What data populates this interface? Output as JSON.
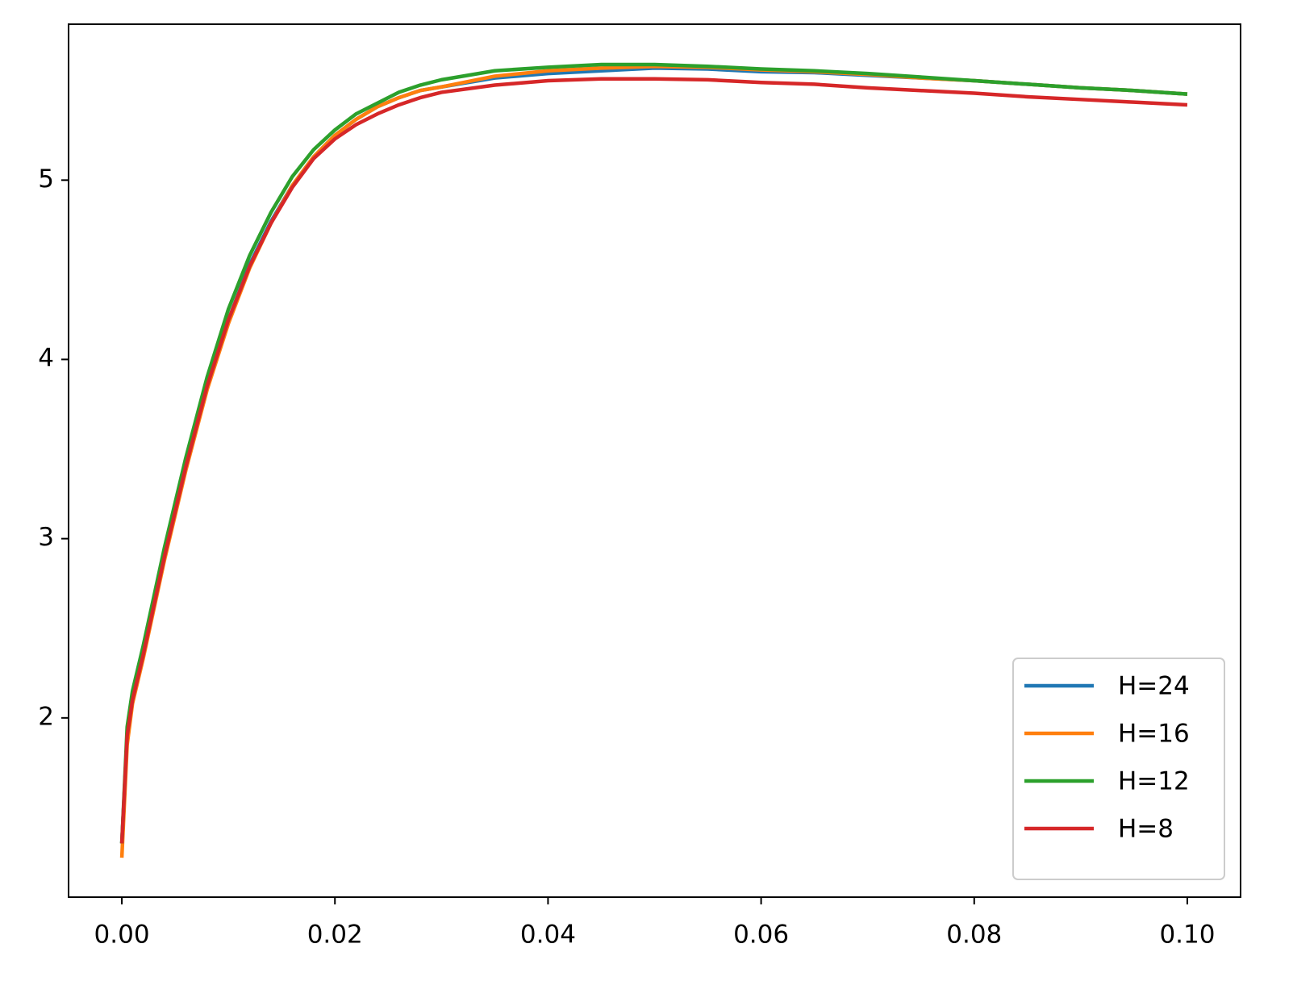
{
  "chart_data": {
    "type": "line",
    "x": [
      0,
      0.0005,
      0.001,
      0.002,
      0.004,
      0.006,
      0.008,
      0.01,
      0.012,
      0.014,
      0.016,
      0.018,
      0.02,
      0.022,
      0.024,
      0.026,
      0.028,
      0.03,
      0.035,
      0.04,
      0.045,
      0.05,
      0.055,
      0.06,
      0.065,
      0.07,
      0.075,
      0.08,
      0.085,
      0.09,
      0.095,
      0.1
    ],
    "series": [
      {
        "name": "H=24",
        "color": "#1f77b4",
        "values": [
          1.3,
          1.9,
          2.1,
          2.35,
          2.9,
          3.4,
          3.85,
          4.22,
          4.53,
          4.77,
          4.97,
          5.13,
          5.25,
          5.34,
          5.41,
          5.46,
          5.5,
          5.52,
          5.57,
          5.595,
          5.61,
          5.625,
          5.62,
          5.605,
          5.6,
          5.585,
          5.57,
          5.555,
          5.535,
          5.515,
          5.5,
          5.48
        ]
      },
      {
        "name": "H=16",
        "color": "#ff7f0e",
        "values": [
          1.22,
          1.85,
          2.08,
          2.33,
          2.88,
          3.38,
          3.83,
          4.2,
          4.51,
          4.76,
          4.97,
          5.13,
          5.25,
          5.34,
          5.41,
          5.46,
          5.5,
          5.52,
          5.58,
          5.61,
          5.625,
          5.635,
          5.63,
          5.615,
          5.605,
          5.59,
          5.57,
          5.555,
          5.535,
          5.515,
          5.5,
          5.48
        ]
      },
      {
        "name": "H=12",
        "color": "#2ca02c",
        "values": [
          1.3,
          1.95,
          2.15,
          2.4,
          2.95,
          3.45,
          3.9,
          4.28,
          4.58,
          4.82,
          5.02,
          5.17,
          5.28,
          5.37,
          5.43,
          5.49,
          5.53,
          5.56,
          5.61,
          5.63,
          5.645,
          5.645,
          5.635,
          5.62,
          5.61,
          5.595,
          5.575,
          5.555,
          5.535,
          5.515,
          5.5,
          5.48
        ]
      },
      {
        "name": "H=8",
        "color": "#d62728",
        "values": [
          1.3,
          1.9,
          2.1,
          2.35,
          2.9,
          3.4,
          3.85,
          4.22,
          4.52,
          4.76,
          4.96,
          5.12,
          5.23,
          5.31,
          5.37,
          5.42,
          5.46,
          5.49,
          5.53,
          5.555,
          5.565,
          5.565,
          5.56,
          5.545,
          5.535,
          5.515,
          5.5,
          5.485,
          5.465,
          5.45,
          5.435,
          5.42
        ]
      }
    ],
    "xlim": [
      -0.005,
      0.105
    ],
    "ylim": [
      1.0,
      5.87
    ],
    "xticks": [
      {
        "value": 0,
        "label": "0.00"
      },
      {
        "value": 0.02,
        "label": "0.02"
      },
      {
        "value": 0.04,
        "label": "0.04"
      },
      {
        "value": 0.06,
        "label": "0.06"
      },
      {
        "value": 0.08,
        "label": "0.08"
      },
      {
        "value": 0.1,
        "label": "0.10"
      }
    ],
    "yticks": [
      2,
      3,
      4,
      5
    ],
    "legend": "lower right"
  }
}
